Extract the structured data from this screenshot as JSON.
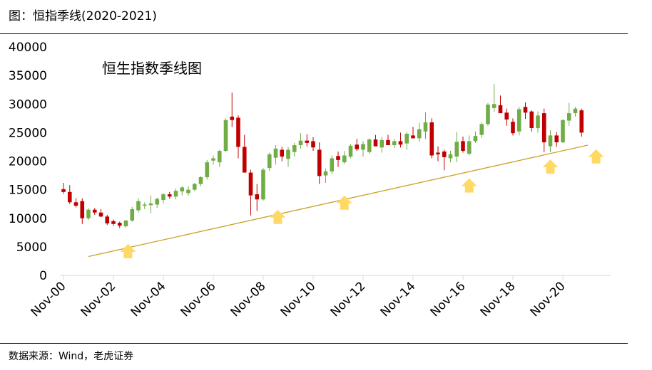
{
  "figure_title": "图：恒指季线(2020-2021)",
  "source_note": "数据来源：Wind，老虎证券",
  "chart_data": {
    "type": "candlestick",
    "title": "恒生指数季线图",
    "ylim": [
      0,
      40000
    ],
    "y_ticks": [
      0,
      5000,
      10000,
      15000,
      20000,
      25000,
      30000,
      35000,
      40000
    ],
    "x_ticks": [
      "Nov-00",
      "Nov-02",
      "Nov-04",
      "Nov-06",
      "Nov-08",
      "Nov-10",
      "Nov-12",
      "Nov-14",
      "Nov-16",
      "Nov-18",
      "Nov-20"
    ],
    "bullish_color": "#70ad47",
    "bearish_color": "#c00000",
    "trendline_color": "#c9a227",
    "arrow_color": "#ffd966",
    "candles": [
      [
        15100,
        16200,
        14300,
        14600
      ],
      [
        14600,
        15800,
        12500,
        12800
      ],
      [
        12800,
        13500,
        11900,
        12200
      ],
      [
        13000,
        13500,
        9000,
        10000
      ],
      [
        10000,
        11800,
        9700,
        11500
      ],
      [
        11500,
        11800,
        10600,
        11000
      ],
      [
        11000,
        11600,
        10200,
        10300
      ],
      [
        10300,
        10600,
        8800,
        9100
      ],
      [
        9500,
        9800,
        8700,
        9000
      ],
      [
        9200,
        9400,
        8300,
        8700
      ],
      [
        8600,
        9700,
        8300,
        9600
      ],
      [
        9600,
        12000,
        9400,
        11600
      ],
      [
        11400,
        13500,
        11000,
        13000
      ],
      [
        12200,
        12800,
        11600,
        12400
      ],
      [
        12300,
        14000,
        10900,
        12600
      ],
      [
        12400,
        13600,
        11800,
        13400
      ],
      [
        13200,
        14400,
        12600,
        14200
      ],
      [
        14200,
        14600,
        13400,
        13800
      ],
      [
        13800,
        15200,
        13300,
        14800
      ],
      [
        14700,
        15600,
        14000,
        15400
      ],
      [
        14400,
        15600,
        14000,
        15000
      ],
      [
        15000,
        16200,
        14800,
        16000
      ],
      [
        16000,
        17400,
        15600,
        17200
      ],
      [
        17200,
        20200,
        16800,
        19800
      ],
      [
        20100,
        21000,
        19400,
        20500
      ],
      [
        19800,
        22000,
        19000,
        21800
      ],
      [
        21800,
        27500,
        21600,
        27200
      ],
      [
        27800,
        32000,
        26000,
        27200
      ],
      [
        27600,
        28000,
        20500,
        22500
      ],
      [
        22500,
        24600,
        18200,
        18000
      ],
      [
        18000,
        18500,
        10500,
        14000
      ],
      [
        14200,
        16000,
        11300,
        13300
      ],
      [
        13300,
        18800,
        13100,
        18500
      ],
      [
        18800,
        21500,
        18300,
        21200
      ],
      [
        20600,
        22800,
        19400,
        22200
      ],
      [
        22000,
        22500,
        20000,
        20800
      ],
      [
        20400,
        22500,
        19000,
        22000
      ],
      [
        21600,
        23200,
        20800,
        22800
      ],
      [
        22800,
        24900,
        22200,
        23600
      ],
      [
        23600,
        24700,
        22600,
        23200
      ],
      [
        23500,
        24200,
        21800,
        22400
      ],
      [
        22000,
        23300,
        16000,
        17400
      ],
      [
        17500,
        18700,
        16200,
        18200
      ],
      [
        18200,
        21000,
        17800,
        20500
      ],
      [
        20900,
        21700,
        19000,
        20200
      ],
      [
        19800,
        21800,
        19500,
        21000
      ],
      [
        20800,
        23000,
        20500,
        22700
      ],
      [
        22900,
        23900,
        21800,
        22100
      ],
      [
        22000,
        23500,
        20800,
        23000
      ],
      [
        21600,
        24000,
        21300,
        23800
      ],
      [
        23800,
        24600,
        22800,
        22600
      ],
      [
        22400,
        24200,
        21500,
        23700
      ],
      [
        23700,
        24600,
        22800,
        22800
      ],
      [
        22800,
        23900,
        22300,
        23500
      ],
      [
        23500,
        25000,
        22400,
        22900
      ],
      [
        23100,
        25100,
        22000,
        24800
      ],
      [
        24500,
        26000,
        24000,
        24000
      ],
      [
        24000,
        26700,
        23400,
        25600
      ],
      [
        25200,
        28600,
        23900,
        26800
      ],
      [
        26800,
        27500,
        20500,
        21000
      ],
      [
        21500,
        22600,
        20000,
        21200
      ],
      [
        21700,
        22000,
        18400,
        20700
      ],
      [
        20500,
        21800,
        19800,
        21200
      ],
      [
        20800,
        25100,
        19800,
        23400
      ],
      [
        23500,
        24300,
        21500,
        21800
      ],
      [
        21300,
        24500,
        21000,
        23500
      ],
      [
        23500,
        25200,
        23200,
        24400
      ],
      [
        24600,
        26800,
        24100,
        26500
      ],
      [
        26500,
        30200,
        26200,
        29900
      ],
      [
        29300,
        33500,
        28600,
        30000
      ],
      [
        29800,
        31500,
        28700,
        28400
      ],
      [
        28500,
        29200,
        26200,
        27300
      ],
      [
        26900,
        27500,
        24500,
        24900
      ],
      [
        25200,
        29500,
        24500,
        29100
      ],
      [
        29500,
        30300,
        27400,
        28500
      ],
      [
        28700,
        28900,
        25200,
        25800
      ],
      [
        25800,
        28700,
        25000,
        28000
      ],
      [
        28400,
        29200,
        21600,
        23300
      ],
      [
        22600,
        25400,
        21600,
        24500
      ],
      [
        24500,
        25100,
        22500,
        23300
      ],
      [
        23300,
        27300,
        23200,
        27200
      ],
      [
        27100,
        30200,
        26200,
        28400
      ],
      [
        28400,
        29500,
        27800,
        29200
      ],
      [
        28900,
        29200,
        24300,
        25000
      ]
    ],
    "trendline": {
      "start": {
        "x": "Nov-01",
        "y": 3300
      },
      "end": {
        "x": "Nov-21",
        "y": 22800
      }
    },
    "support_arrows": [
      {
        "x": "Jun-03",
        "y": 3000
      },
      {
        "x": "Jun-09",
        "y": 9000
      },
      {
        "x": "Feb-12",
        "y": 11500
      },
      {
        "x": "Feb-17",
        "y": 14500
      },
      {
        "x": "May-20",
        "y": 17800
      },
      {
        "x": "Mar-22",
        "y": 19600
      }
    ]
  }
}
